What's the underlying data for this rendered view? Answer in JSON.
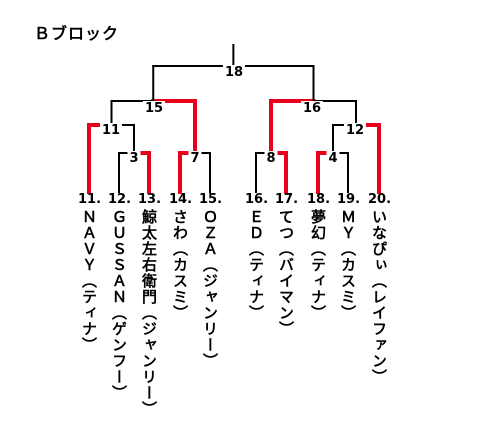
{
  "block_title": "Ｂブロック",
  "colors": {
    "winner_line": "#e8001c",
    "line": "#000000"
  },
  "entrants": [
    {
      "seed": "11.",
      "name": "ＮＡＶＹ（ティナ）"
    },
    {
      "seed": "12.",
      "name": "ＧＵＳＳＡＮ（ゲンフー）"
    },
    {
      "seed": "13.",
      "name": "鯨太左右衛門（ジャンリー）"
    },
    {
      "seed": "14.",
      "name": "さわ（カスミ）"
    },
    {
      "seed": "15.",
      "name": "ＯＺＡ（ジャンリー）"
    },
    {
      "seed": "16.",
      "name": "ＥＤ（ティナ）"
    },
    {
      "seed": "17.",
      "name": "てつ（バイマン）"
    },
    {
      "seed": "18.",
      "name": "夢幻（ティナ）"
    },
    {
      "seed": "19.",
      "name": "ＭＹ（カスミ）"
    },
    {
      "seed": "20.",
      "name": "いなぴぃ（レイファン）"
    }
  ],
  "matches": [
    {
      "id": "m3",
      "label": "3",
      "a": "e12",
      "b": "e13",
      "winner": "b"
    },
    {
      "id": "m11",
      "label": "11",
      "a": "e11",
      "b": "m3",
      "winner": "a"
    },
    {
      "id": "m7",
      "label": "7",
      "a": "e14",
      "b": "e15",
      "winner": "a"
    },
    {
      "id": "m15",
      "label": "15",
      "a": "m11",
      "b": "m7",
      "winner": "b"
    },
    {
      "id": "m8",
      "label": "8",
      "a": "e16",
      "b": "e17",
      "winner": "b"
    },
    {
      "id": "m4",
      "label": "4",
      "a": "e18",
      "b": "e19",
      "winner": "a"
    },
    {
      "id": "m12",
      "label": "12",
      "a": "m4",
      "b": "e20",
      "winner": "b"
    },
    {
      "id": "m16",
      "label": "16",
      "a": "m8",
      "b": "m12",
      "winner": "a"
    },
    {
      "id": "m18",
      "label": "18",
      "a": "m15",
      "b": "m16",
      "winner": null
    }
  ]
}
